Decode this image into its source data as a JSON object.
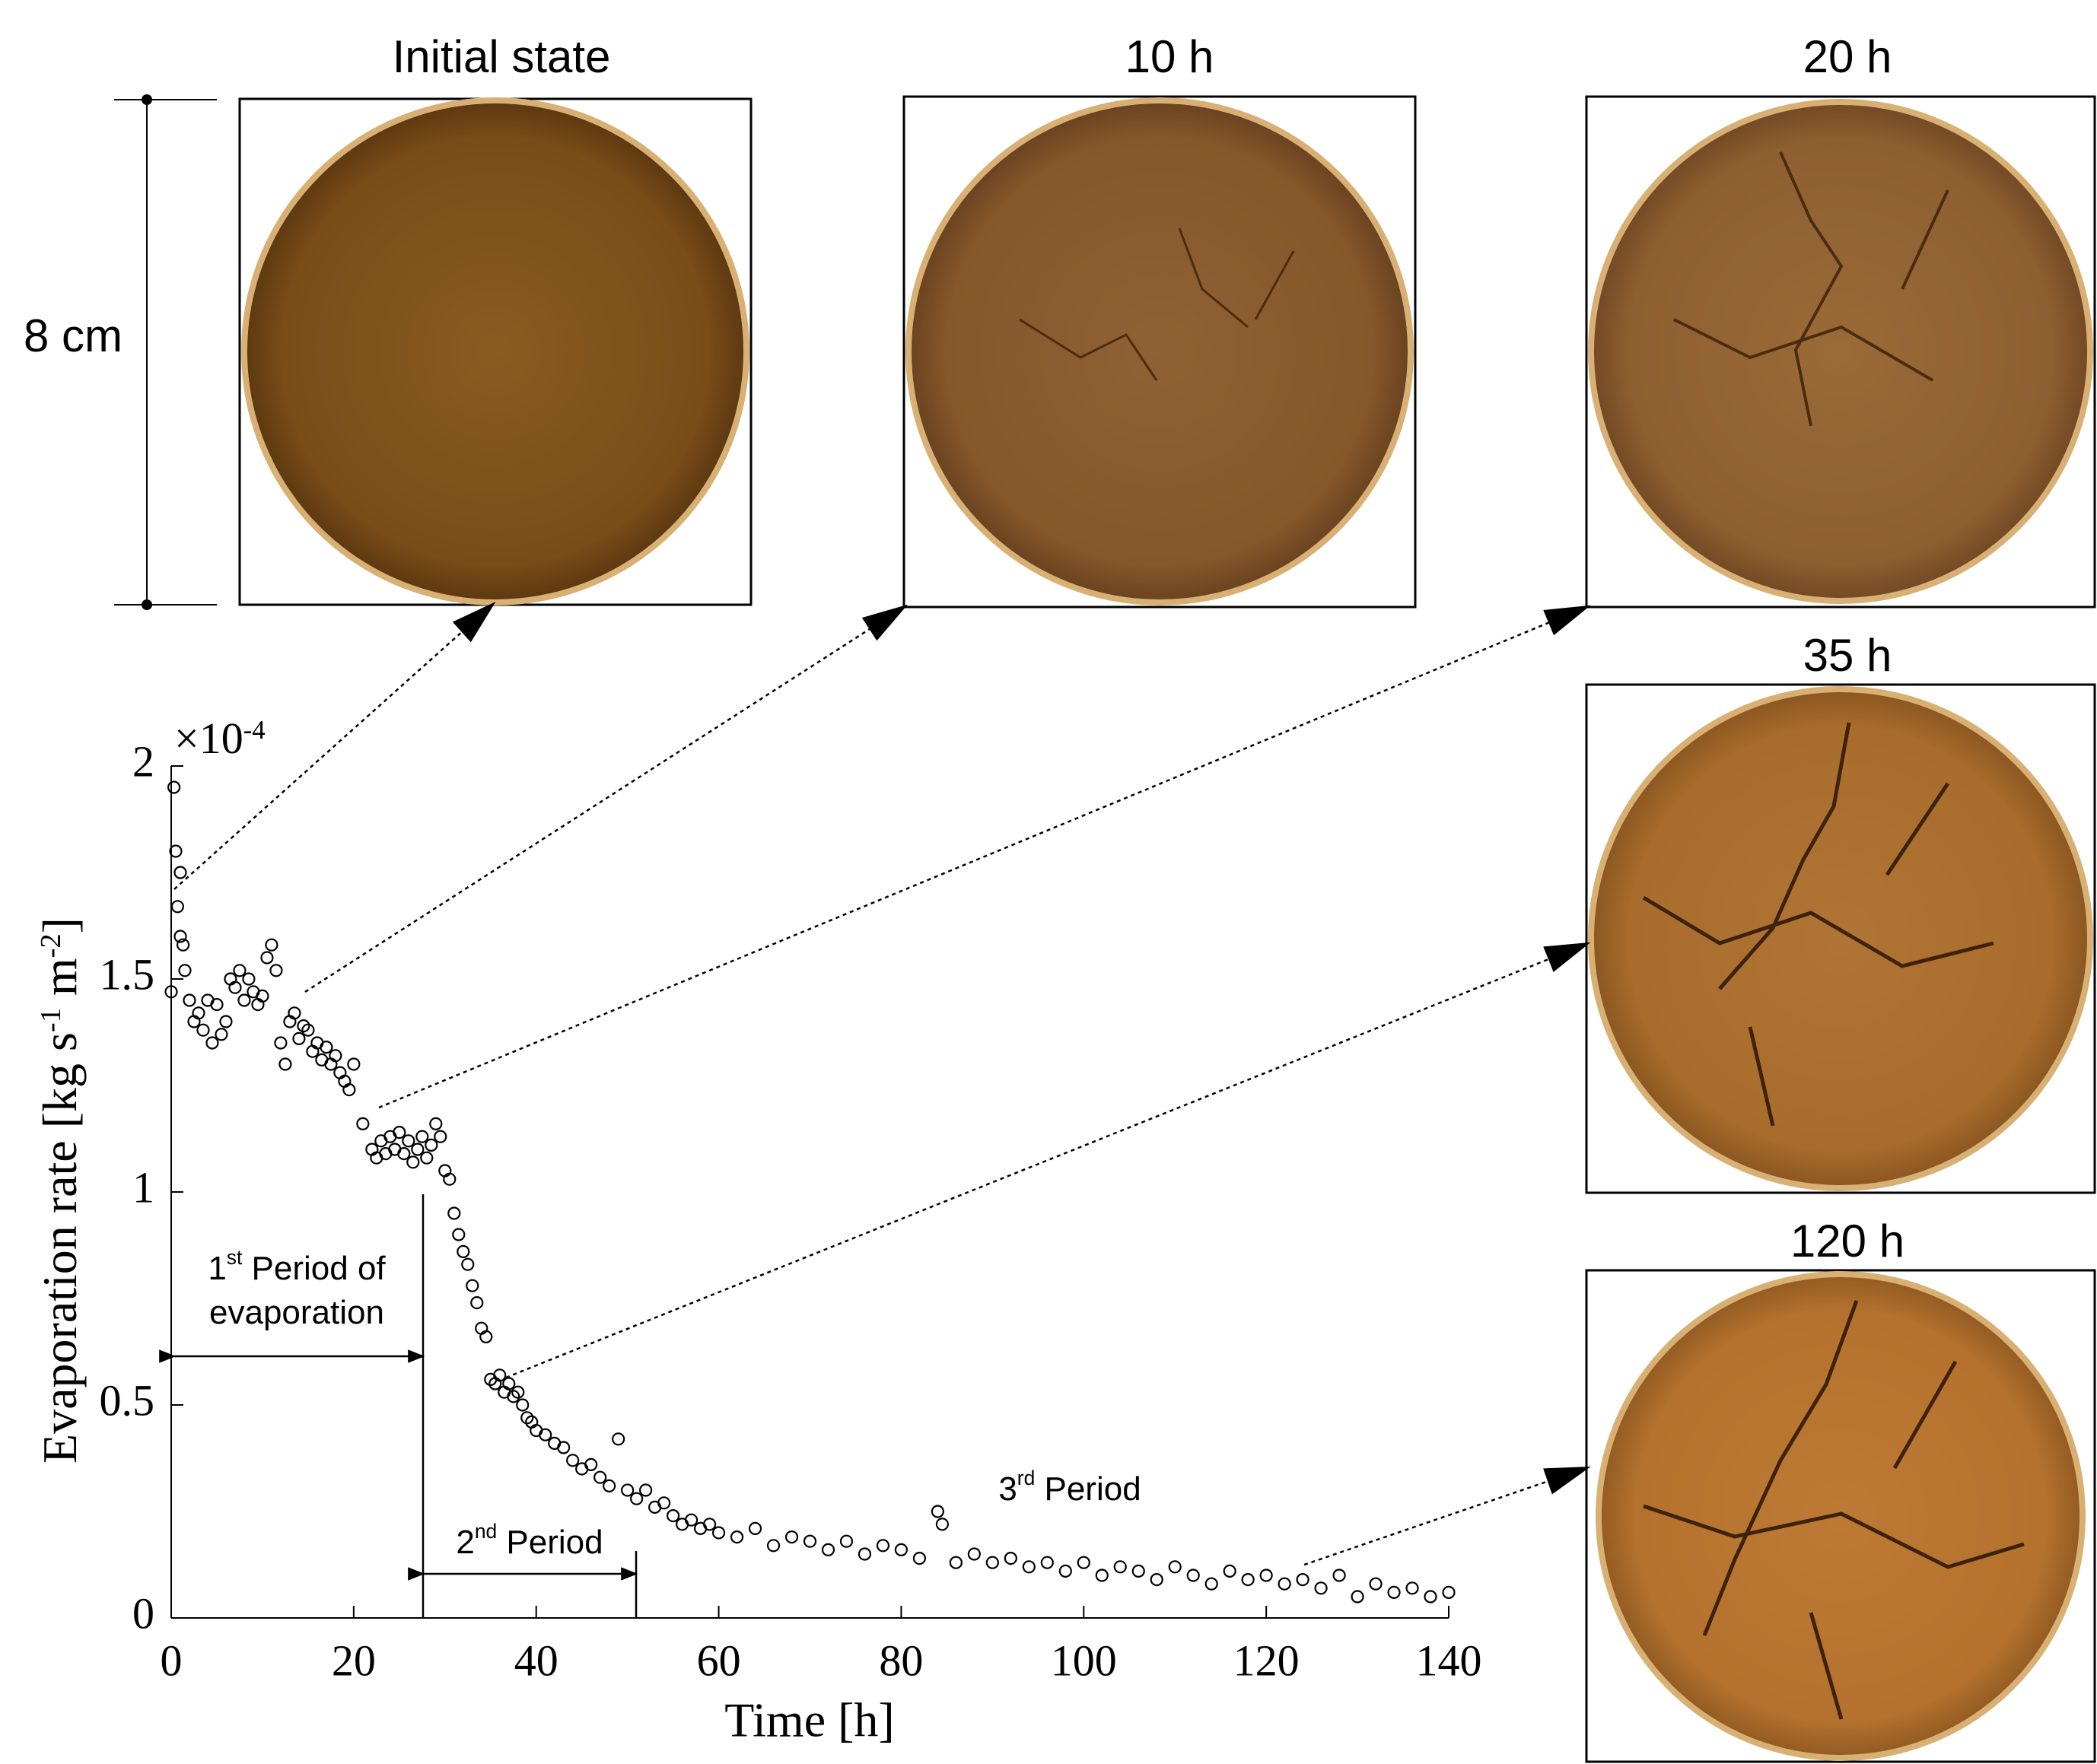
{
  "chart_data": {
    "type": "scatter",
    "x_label": "Time [h]",
    "y_label": [
      "Evaporation rate [kg s",
      "-1",
      " m",
      "-2",
      "]"
    ],
    "y_multiplier": [
      "×10",
      "-4"
    ],
    "xlim": [
      0,
      140
    ],
    "xticks": [
      0,
      20,
      40,
      60,
      80,
      100,
      120,
      140
    ],
    "ylim": [
      0,
      2
    ],
    "yticks": [
      0,
      0.5,
      1,
      1.5,
      2
    ],
    "color": "#000000",
    "x": [
      0,
      0.3,
      0.5,
      0.7,
      1,
      1,
      1.3,
      1.5,
      2,
      2.5,
      3,
      3.5,
      4,
      4.5,
      5,
      5.5,
      6,
      6.5,
      7,
      7.5,
      8,
      8.5,
      9,
      9.5,
      10,
      10.5,
      11,
      11.5,
      12,
      12.5,
      13,
      13.5,
      14,
      14.5,
      15,
      15.5,
      16,
      16.5,
      17,
      17.5,
      18,
      18.5,
      19,
      19.5,
      20,
      21,
      22,
      22.5,
      23,
      23.5,
      24,
      24.5,
      25,
      25.5,
      26,
      26.5,
      27,
      27.5,
      28,
      28.5,
      29,
      29.5,
      30,
      30.5,
      31,
      31.5,
      32,
      32.5,
      33,
      33.5,
      34,
      34.5,
      35,
      35.5,
      36,
      36.5,
      37,
      37.5,
      38,
      38.5,
      39,
      39.5,
      40,
      41,
      42,
      43,
      44,
      45,
      46,
      47,
      48,
      49,
      50,
      51,
      52,
      53,
      54,
      55,
      56,
      57,
      58,
      59,
      60,
      62,
      64,
      66,
      68,
      70,
      72,
      74,
      76,
      78,
      80,
      82,
      84,
      84.5,
      86,
      88,
      90,
      92,
      94,
      96,
      98,
      100,
      102,
      104,
      106,
      108,
      110,
      112,
      114,
      116,
      118,
      120,
      122,
      124,
      126,
      128,
      130,
      132,
      134,
      136,
      138,
      140
    ],
    "values": [
      1.47,
      1.95,
      1.8,
      1.67,
      1.6,
      1.75,
      1.58,
      1.52,
      1.45,
      1.4,
      1.42,
      1.38,
      1.45,
      1.35,
      1.44,
      1.37,
      1.4,
      1.5,
      1.48,
      1.52,
      1.45,
      1.5,
      1.47,
      1.44,
      1.46,
      1.55,
      1.58,
      1.52,
      1.35,
      1.3,
      1.4,
      1.42,
      1.36,
      1.39,
      1.38,
      1.33,
      1.35,
      1.31,
      1.34,
      1.3,
      1.32,
      1.28,
      1.26,
      1.24,
      1.3,
      1.16,
      1.1,
      1.08,
      1.12,
      1.09,
      1.13,
      1.1,
      1.14,
      1.09,
      1.12,
      1.07,
      1.1,
      1.13,
      1.08,
      1.11,
      1.16,
      1.13,
      1.05,
      1.03,
      0.95,
      0.9,
      0.86,
      0.83,
      0.78,
      0.74,
      0.68,
      0.66,
      0.56,
      0.55,
      0.57,
      0.53,
      0.55,
      0.52,
      0.53,
      0.5,
      0.47,
      0.46,
      0.44,
      0.43,
      0.41,
      0.4,
      0.37,
      0.35,
      0.36,
      0.33,
      0.31,
      0.42,
      0.3,
      0.28,
      0.3,
      0.26,
      0.27,
      0.24,
      0.22,
      0.23,
      0.21,
      0.22,
      0.2,
      0.19,
      0.21,
      0.17,
      0.19,
      0.18,
      0.16,
      0.18,
      0.15,
      0.17,
      0.16,
      0.14,
      0.25,
      0.22,
      0.13,
      0.15,
      0.13,
      0.14,
      0.12,
      0.13,
      0.11,
      0.13,
      0.1,
      0.12,
      0.11,
      0.09,
      0.12,
      0.1,
      0.08,
      0.11,
      0.09,
      0.1,
      0.08,
      0.09,
      0.07,
      0.1,
      0.05,
      0.08,
      0.06,
      0.07,
      0.05,
      0.06
    ],
    "annotations": [
      {
        "lines": [
          [
            "1",
            "st",
            " Period of"
          ],
          [
            "evaporation"
          ]
        ]
      },
      {
        "lines": [
          [
            "2",
            "nd",
            " Period"
          ]
        ]
      },
      {
        "lines": [
          [
            "3",
            "rd",
            " Period"
          ]
        ]
      }
    ]
  },
  "scale_bar": "8 cm",
  "panels": [
    {
      "label": "Initial state"
    },
    {
      "label": "10 h"
    },
    {
      "label": "20 h"
    },
    {
      "label": "35 h"
    },
    {
      "label": "120 h"
    }
  ]
}
